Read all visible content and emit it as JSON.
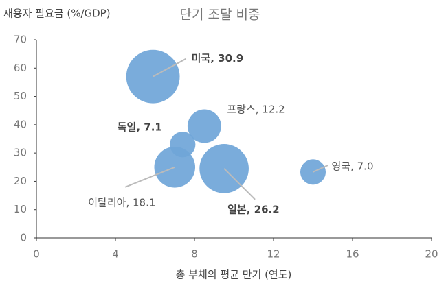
{
  "chart_data": {
    "type": "bubble",
    "title": "단기 조달 비중",
    "ylabel": "재용자 필요금 (%/GDP)",
    "xlabel": "총 부채의 평균 만기 (연도)",
    "x": [
      5.9,
      8.5,
      7.4,
      7.0,
      9.5,
      14.0
    ],
    "values": [
      57,
      39.5,
      33,
      25,
      24.5,
      23.3
    ],
    "sizes": [
      30.9,
      12.2,
      7.1,
      18.1,
      26.2,
      7.0
    ],
    "value_labels": [
      "미국, 30.9",
      "프랑스, 12.2",
      "독일, 7.1",
      "이탈리아, 18.1",
      "일본, 26.2",
      "영국, 7.0"
    ],
    "color": "#6fa5d8",
    "xlim": [
      0,
      20
    ],
    "xticks": [
      0,
      4,
      8,
      12,
      16,
      20
    ],
    "ylim": [
      0,
      70
    ],
    "yticks": [
      0,
      10,
      20,
      30,
      40,
      50,
      60,
      70
    ]
  }
}
